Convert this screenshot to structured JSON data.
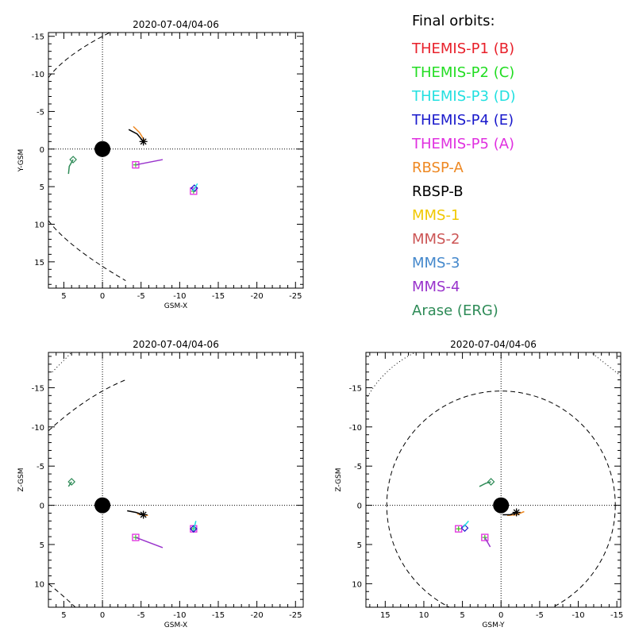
{
  "legend": {
    "title": "Final orbits:",
    "entries": [
      {
        "label": "THEMIS-P1 (B)",
        "color": "#e8202a"
      },
      {
        "label": "THEMIS-P2 (C)",
        "color": "#22dd22"
      },
      {
        "label": "THEMIS-P3 (D)",
        "color": "#22e0e0"
      },
      {
        "label": "THEMIS-P4 (E)",
        "color": "#1a1acc"
      },
      {
        "label": "THEMIS-P5 (A)",
        "color": "#e030e0"
      },
      {
        "label": "RBSP-A",
        "color": "#ee8822"
      },
      {
        "label": "RBSP-B",
        "color": "#000000"
      },
      {
        "label": "MMS-1",
        "color": "#f0c800"
      },
      {
        "label": "MMS-2",
        "color": "#cc5555"
      },
      {
        "label": "MMS-3",
        "color": "#4488cc"
      },
      {
        "label": "MMS-4",
        "color": "#9933cc"
      },
      {
        "label": "Arase (ERG)",
        "color": "#2e8b57"
      }
    ]
  },
  "chart_data": [
    {
      "type": "scatter",
      "title": "2020-07-04/04-06",
      "xlabel": "GSM-X",
      "ylabel": "Y-GSM",
      "xlim": [
        7,
        -26
      ],
      "ylim": [
        -15.5,
        18.5
      ],
      "xticks": [
        5,
        0,
        -5,
        -10,
        -15,
        -20,
        -25
      ],
      "yticks": [
        -15,
        -10,
        -5,
        0,
        5,
        10,
        15
      ],
      "earth": [
        0,
        0
      ],
      "series": [
        {
          "color": "#e030e0",
          "marker": "square",
          "points": [
            [
              -4.3,
              2.1
            ],
            [
              -11.8,
              5.6
            ]
          ]
        },
        {
          "color": "#e8202a",
          "marker": "plus",
          "points": [
            [
              -4.3,
              2.1
            ],
            [
              -11.8,
              5.6
            ]
          ]
        },
        {
          "color": "#22dd22",
          "marker": "plus",
          "points": [
            [
              -4.3,
              2.1
            ],
            [
              -11.8,
              5.6
            ]
          ]
        },
        {
          "color": "#1a1acc",
          "marker": "diamond",
          "points": [
            [
              -11.9,
              5.2
            ]
          ]
        },
        {
          "color": "#22e0e0",
          "marker": "none",
          "points": [
            [
              -11.7,
              5.6
            ],
            [
              -12.3,
              4.6
            ]
          ]
        },
        {
          "color": "#9933cc",
          "marker": "none",
          "points": [
            [
              -4.3,
              2.1
            ],
            [
              -7.8,
              1.4
            ]
          ]
        },
        {
          "color": "#ee8822",
          "marker": "none",
          "points": [
            [
              -4.0,
              -3.0
            ],
            [
              -4.8,
              -2.2
            ],
            [
              -5.4,
              -1.2
            ]
          ]
        },
        {
          "color": "#000000",
          "marker": "asterisk",
          "points": [
            [
              -3.4,
              -2.6
            ],
            [
              -4.5,
              -2.0
            ],
            [
              -5.3,
              -1.0
            ]
          ]
        },
        {
          "color": "#2e8b57",
          "marker": "diamond",
          "points": [
            [
              3.8,
              1.4
            ]
          ]
        },
        {
          "color": "#2e8b57",
          "marker": "none",
          "points": [
            [
              3.8,
              1.4
            ],
            [
              4.3,
              2.3
            ],
            [
              4.4,
              3.3
            ]
          ]
        }
      ]
    },
    {
      "type": "scatter",
      "title": "2020-07-04/04-06",
      "xlabel": "GSM-X",
      "ylabel": "Z-GSM",
      "xlim": [
        7,
        -26
      ],
      "ylim": [
        -19.5,
        13
      ],
      "xticks": [
        5,
        0,
        -5,
        -10,
        -15,
        -20,
        -25
      ],
      "yticks": [
        10,
        5,
        0,
        -5,
        -10,
        -15
      ],
      "earth": [
        0,
        0
      ],
      "series": [
        {
          "color": "#e030e0",
          "marker": "square",
          "points": [
            [
              -4.3,
              4.1
            ],
            [
              -11.8,
              3.0
            ]
          ]
        },
        {
          "color": "#e8202a",
          "marker": "plus",
          "points": [
            [
              -4.3,
              4.1
            ],
            [
              -11.8,
              3.0
            ]
          ]
        },
        {
          "color": "#22dd22",
          "marker": "plus",
          "points": [
            [
              -4.3,
              4.1
            ],
            [
              -11.8,
              3.0
            ]
          ]
        },
        {
          "color": "#1a1acc",
          "marker": "diamond",
          "points": [
            [
              -11.8,
              3.0
            ]
          ]
        },
        {
          "color": "#22e0e0",
          "marker": "none",
          "points": [
            [
              -11.8,
              3.2
            ],
            [
              -12.1,
              2.0
            ]
          ]
        },
        {
          "color": "#9933cc",
          "marker": "none",
          "points": [
            [
              -4.3,
              4.1
            ],
            [
              -7.8,
              5.4
            ]
          ]
        },
        {
          "color": "#ee8822",
          "marker": "none",
          "points": [
            [
              -4.5,
              1.1
            ],
            [
              -5.9,
              1.3
            ]
          ]
        },
        {
          "color": "#000000",
          "marker": "asterisk",
          "points": [
            [
              -3.2,
              0.7
            ],
            [
              -4.3,
              0.9
            ],
            [
              -5.3,
              1.2
            ]
          ]
        },
        {
          "color": "#2e8b57",
          "marker": "diamond",
          "points": [
            [
              4.0,
              -3.0
            ]
          ]
        },
        {
          "color": "#2e8b57",
          "marker": "none",
          "points": [
            [
              4.4,
              -2.4
            ],
            [
              4.0,
              -3.0
            ]
          ]
        }
      ]
    },
    {
      "type": "scatter",
      "title": "2020-07-04/04-06",
      "xlabel": "GSM-Y",
      "ylabel": "Z-GSM",
      "xlim": [
        17.5,
        -15.5
      ],
      "ylim": [
        -19.5,
        13
      ],
      "xticks": [
        15,
        10,
        5,
        0,
        -5,
        -10,
        -15
      ],
      "yticks": [
        10,
        5,
        0,
        -5,
        -10,
        -15
      ],
      "earth": [
        0,
        0
      ],
      "series": [
        {
          "color": "#e030e0",
          "marker": "square",
          "points": [
            [
              5.5,
              3.0
            ],
            [
              2.1,
              4.1
            ]
          ]
        },
        {
          "color": "#e8202a",
          "marker": "plus",
          "points": [
            [
              5.5,
              3.0
            ],
            [
              2.1,
              4.1
            ]
          ]
        },
        {
          "color": "#22dd22",
          "marker": "plus",
          "points": [
            [
              5.5,
              3.0
            ],
            [
              2.1,
              4.1
            ]
          ]
        },
        {
          "color": "#1a1acc",
          "marker": "diamond",
          "points": [
            [
              4.7,
              2.9
            ]
          ]
        },
        {
          "color": "#22e0e0",
          "marker": "none",
          "points": [
            [
              4.9,
              2.8
            ],
            [
              4.2,
              2.0
            ]
          ]
        },
        {
          "color": "#9933cc",
          "marker": "none",
          "points": [
            [
              2.1,
              4.1
            ],
            [
              1.4,
              5.3
            ]
          ]
        },
        {
          "color": "#ee8822",
          "marker": "none",
          "points": [
            [
              -0.8,
              1.3
            ],
            [
              -2.0,
              1.2
            ],
            [
              -3.0,
              0.8
            ]
          ]
        },
        {
          "color": "#000000",
          "marker": "asterisk",
          "points": [
            [
              -0.2,
              1.2
            ],
            [
              -1.2,
              1.2
            ],
            [
              -2.0,
              0.9
            ]
          ]
        },
        {
          "color": "#2e8b57",
          "marker": "diamond",
          "points": [
            [
              1.3,
              -3.0
            ]
          ]
        },
        {
          "color": "#2e8b57",
          "marker": "none",
          "points": [
            [
              2.8,
              -2.4
            ],
            [
              2.0,
              -2.8
            ],
            [
              1.3,
              -3.0
            ]
          ]
        }
      ]
    }
  ]
}
